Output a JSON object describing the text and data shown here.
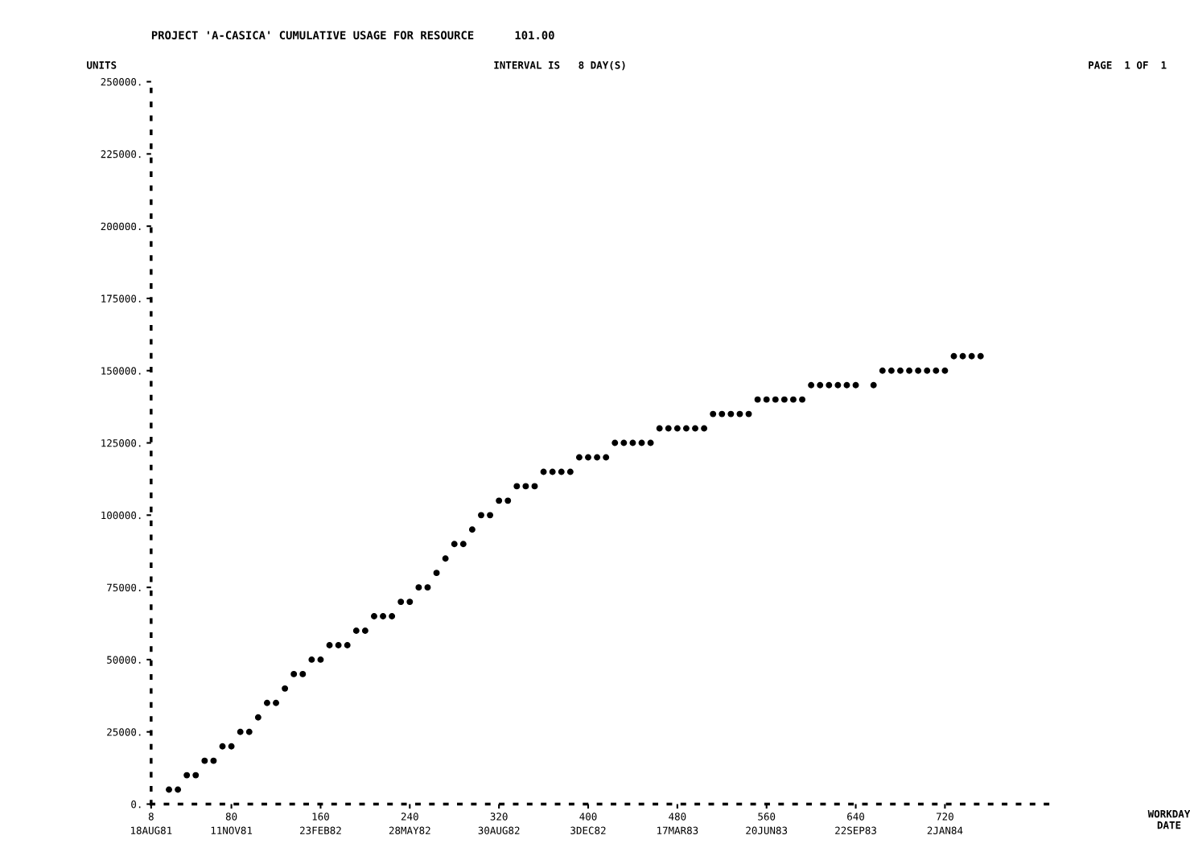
{
  "chart_data": {
    "type": "scatter",
    "title": "PROJECT 'A-CASICA' CUMULATIVE USAGE FOR RESOURCE      101.00",
    "ylabel": "UNITS",
    "annotations": [
      "INTERVAL IS   8 DAY(S)",
      "PAGE  1 OF  1",
      "WORKDAY\nDATE",
      "18AUG81",
      "11NOV81",
      "23FEB82",
      "28MAY82",
      "30AUG82",
      "3DEC82",
      "17MAR83",
      "20JUN83",
      "22SEP83",
      "2JAN84"
    ],
    "x": [
      24,
      32,
      40,
      48,
      56,
      64,
      72,
      80,
      88,
      96,
      104,
      112,
      120,
      128,
      136,
      144,
      152,
      160,
      168,
      176,
      184,
      192,
      200,
      208,
      216,
      224,
      232,
      240,
      248,
      256,
      264,
      272,
      280,
      288,
      296,
      304,
      312,
      320,
      328,
      336,
      344,
      352,
      360,
      368,
      376,
      384,
      392,
      400,
      408,
      416,
      424,
      432,
      440,
      448,
      456,
      464,
      472,
      480,
      488,
      496,
      504,
      512,
      520,
      528,
      536,
      544,
      552,
      560,
      568,
      576,
      584,
      592,
      600,
      608,
      616,
      624,
      632,
      640,
      656,
      664,
      672,
      680,
      688,
      696,
      704,
      712,
      720,
      728,
      736,
      744,
      752
    ],
    "series": [
      {
        "color": "#000000",
        "values": [
          5000,
          5000,
          10000,
          10000,
          15000,
          15000,
          20000,
          20000,
          25000,
          25000,
          30000,
          35000,
          35000,
          40000,
          45000,
          45000,
          50000,
          50000,
          55000,
          55000,
          55000,
          60000,
          60000,
          65000,
          65000,
          65000,
          70000,
          70000,
          75000,
          75000,
          80000,
          85000,
          90000,
          90000,
          95000,
          100000,
          100000,
          105000,
          105000,
          110000,
          110000,
          110000,
          115000,
          115000,
          115000,
          115000,
          120000,
          120000,
          120000,
          120000,
          125000,
          125000,
          125000,
          125000,
          125000,
          130000,
          130000,
          130000,
          130000,
          130000,
          130000,
          135000,
          135000,
          135000,
          135000,
          135000,
          140000,
          140000,
          140000,
          140000,
          140000,
          140000,
          145000,
          145000,
          145000,
          145000,
          145000,
          145000,
          145000,
          150000,
          150000,
          150000,
          150000,
          150000,
          150000,
          150000,
          150000,
          155000,
          155000,
          155000,
          155000
        ]
      }
    ],
    "marker": "circle",
    "xlim": [
      8,
      816
    ],
    "ylim": [
      0,
      250000
    ],
    "xticks": [
      8,
      80,
      160,
      240,
      320,
      400,
      480,
      560,
      640,
      720
    ],
    "yticks": [
      {
        "value": 0,
        "label": "0."
      },
      {
        "value": 25000,
        "label": "25000."
      },
      {
        "value": 50000,
        "label": "50000."
      },
      {
        "value": 75000,
        "label": "75000."
      },
      {
        "value": 100000,
        "label": "100000."
      },
      {
        "value": 125000,
        "label": "125000."
      },
      {
        "value": 150000,
        "label": "150000."
      },
      {
        "value": 175000,
        "label": "175000."
      },
      {
        "value": 200000,
        "label": "200000."
      },
      {
        "value": 225000,
        "label": "225000."
      },
      {
        "value": 250000,
        "label": "250000."
      }
    ]
  }
}
